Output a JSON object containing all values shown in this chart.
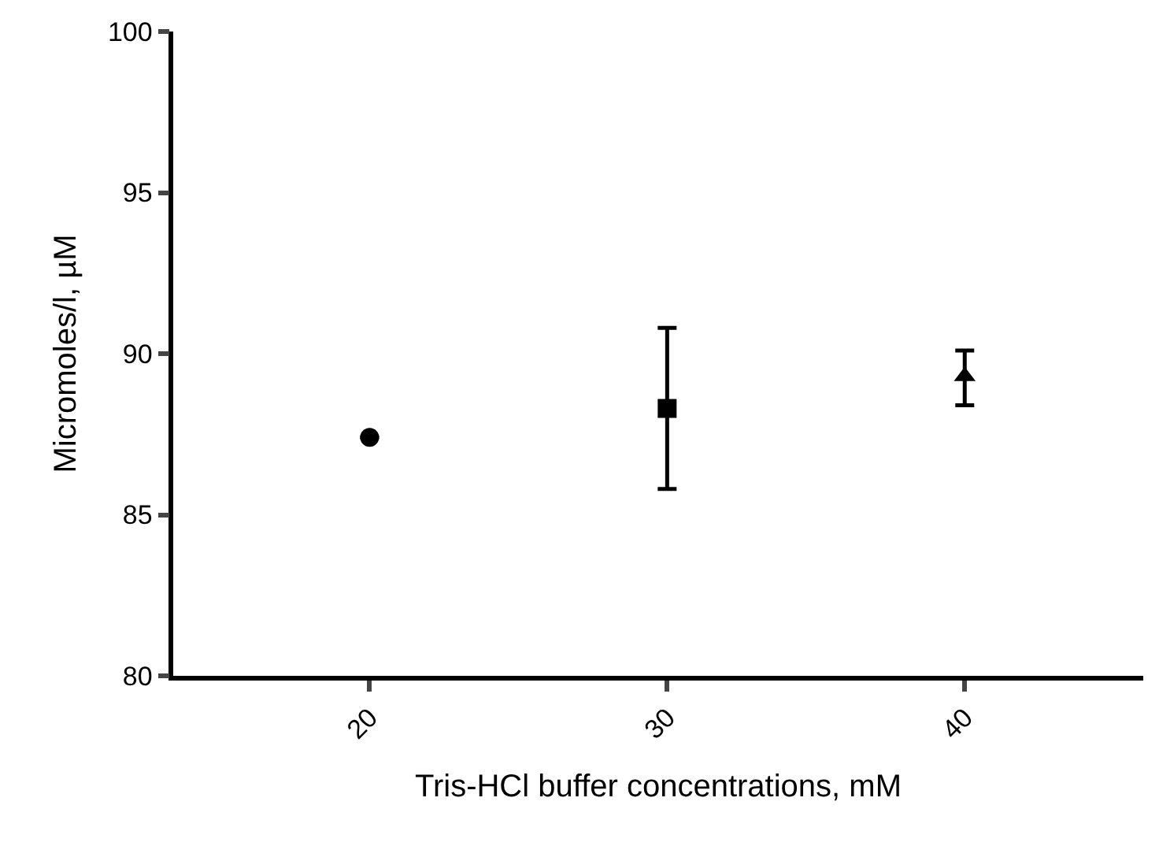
{
  "chart_data": {
    "type": "scatter",
    "xlabel": "Tris-HCl buffer concentrations, mM",
    "ylabel": "Micromoles/l, µM",
    "categories": [
      "20",
      "30",
      "40"
    ],
    "series": [
      {
        "x": [
          "20"
        ],
        "values": [
          87.4
        ],
        "color": "#000000",
        "marker": "circle",
        "errors": [
          null
        ]
      },
      {
        "x": [
          "30"
        ],
        "values": [
          88.3
        ],
        "color": "#000000",
        "marker": "square",
        "errors": [
          [
            85.8,
            90.8
          ]
        ]
      },
      {
        "x": [
          "40"
        ],
        "values": [
          89.3
        ],
        "color": "#000000",
        "marker": "triangle",
        "errors": [
          [
            88.4,
            90.1
          ]
        ]
      }
    ],
    "ylim": [
      80,
      100
    ],
    "yticks": [
      80,
      85,
      90,
      95,
      100
    ]
  }
}
